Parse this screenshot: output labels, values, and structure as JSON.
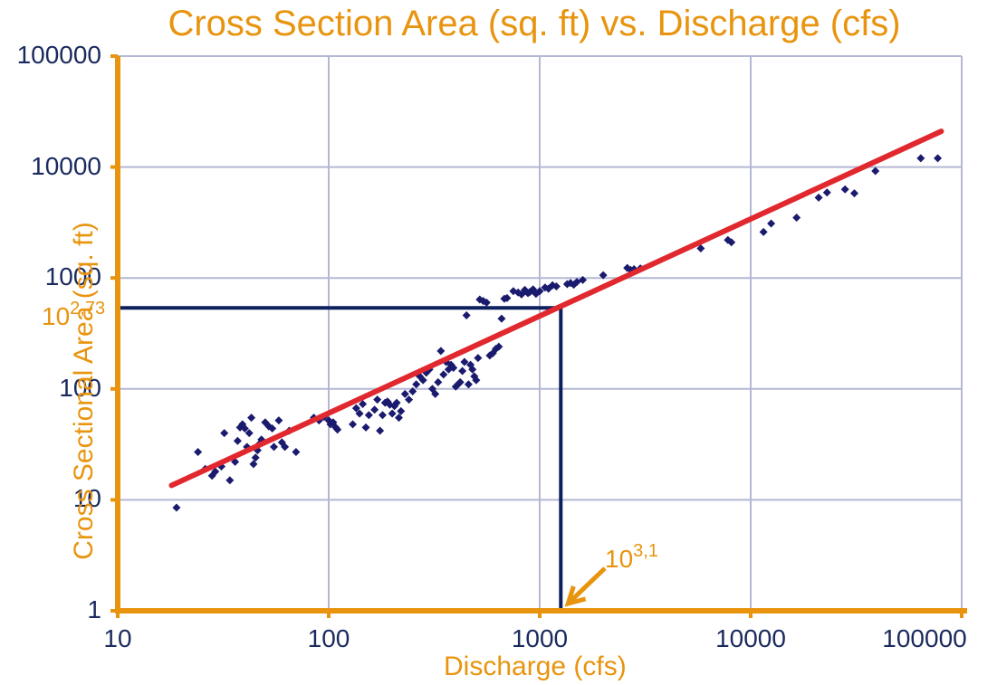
{
  "chart_data": {
    "type": "scatter",
    "title": "Cross Section Area (sq. ft) vs. Discharge (cfs)",
    "xlabel": "Discharge (cfs)",
    "ylabel": "Cross Sectional Area (sq. ft)",
    "xscale": "log",
    "yscale": "log",
    "xlim": [
      10,
      100000
    ],
    "ylim": [
      1,
      100000
    ],
    "x_ticks": [
      "10",
      "100",
      "1000",
      "10000",
      "100000"
    ],
    "y_ticks": [
      "1",
      "10",
      "100",
      "1000",
      "10000",
      "100000"
    ],
    "grid": true,
    "legend": "none",
    "colors": {
      "points": "#1a1a6e",
      "fit": "#e0282e",
      "guide": "#0d1f5c",
      "axes": "#e8940e",
      "grid": "#b4b8d4"
    },
    "series": [
      {
        "type": "scatter",
        "points": [
          [
            19,
            8.5
          ],
          [
            24,
            27
          ],
          [
            26,
            19
          ],
          [
            28,
            16.5
          ],
          [
            29,
            18
          ],
          [
            31,
            20
          ],
          [
            32,
            40
          ],
          [
            34,
            15
          ],
          [
            36,
            22
          ],
          [
            37,
            34
          ],
          [
            38,
            45
          ],
          [
            39,
            48
          ],
          [
            40,
            44
          ],
          [
            41,
            30
          ],
          [
            42,
            40
          ],
          [
            43,
            55
          ],
          [
            44,
            21
          ],
          [
            45,
            24
          ],
          [
            46,
            28
          ],
          [
            47,
            32
          ],
          [
            48,
            35
          ],
          [
            50,
            50
          ],
          [
            52,
            46
          ],
          [
            54,
            44
          ],
          [
            55,
            30
          ],
          [
            58,
            52
          ],
          [
            60,
            33
          ],
          [
            62,
            30
          ],
          [
            65,
            42
          ],
          [
            70,
            27
          ],
          [
            85,
            55
          ],
          [
            90,
            52
          ],
          [
            95,
            56
          ],
          [
            100,
            52
          ],
          [
            102,
            48
          ],
          [
            105,
            50
          ],
          [
            108,
            45
          ],
          [
            110,
            43
          ],
          [
            130,
            48
          ],
          [
            135,
            67
          ],
          [
            140,
            60
          ],
          [
            145,
            73
          ],
          [
            150,
            45
          ],
          [
            155,
            58
          ],
          [
            165,
            65
          ],
          [
            170,
            80
          ],
          [
            175,
            42
          ],
          [
            180,
            58
          ],
          [
            185,
            75
          ],
          [
            190,
            77
          ],
          [
            195,
            72
          ],
          [
            200,
            60
          ],
          [
            205,
            70
          ],
          [
            210,
            75
          ],
          [
            215,
            55
          ],
          [
            220,
            63
          ],
          [
            230,
            90
          ],
          [
            240,
            80
          ],
          [
            250,
            95
          ],
          [
            260,
            110
          ],
          [
            270,
            130
          ],
          [
            280,
            120
          ],
          [
            290,
            140
          ],
          [
            300,
            150
          ],
          [
            310,
            100
          ],
          [
            320,
            90
          ],
          [
            330,
            115
          ],
          [
            340,
            220
          ],
          [
            350,
            135
          ],
          [
            360,
            175
          ],
          [
            370,
            150
          ],
          [
            380,
            165
          ],
          [
            390,
            155
          ],
          [
            400,
            105
          ],
          [
            410,
            110
          ],
          [
            420,
            115
          ],
          [
            430,
            145
          ],
          [
            440,
            175
          ],
          [
            450,
            460
          ],
          [
            460,
            110
          ],
          [
            470,
            165
          ],
          [
            480,
            150
          ],
          [
            490,
            130
          ],
          [
            500,
            120
          ],
          [
            510,
            190
          ],
          [
            520,
            640
          ],
          [
            540,
            620
          ],
          [
            560,
            600
          ],
          [
            580,
            200
          ],
          [
            600,
            210
          ],
          [
            620,
            230
          ],
          [
            640,
            240
          ],
          [
            660,
            430
          ],
          [
            680,
            650
          ],
          [
            700,
            660
          ],
          [
            750,
            760
          ],
          [
            790,
            740
          ],
          [
            820,
            710
          ],
          [
            850,
            780
          ],
          [
            880,
            730
          ],
          [
            900,
            750
          ],
          [
            930,
            790
          ],
          [
            960,
            720
          ],
          [
            1000,
            760
          ],
          [
            1060,
            820
          ],
          [
            1100,
            800
          ],
          [
            1150,
            860
          ],
          [
            1200,
            840
          ],
          [
            1350,
            880
          ],
          [
            1400,
            900
          ],
          [
            1450,
            870
          ],
          [
            1500,
            920
          ],
          [
            1600,
            960
          ],
          [
            2000,
            1060
          ],
          [
            2600,
            1230
          ],
          [
            2700,
            1180
          ],
          [
            2800,
            1200
          ],
          [
            3000,
            1220
          ],
          [
            5800,
            1850
          ],
          [
            7800,
            2200
          ],
          [
            8100,
            2100
          ],
          [
            11500,
            2600
          ],
          [
            12500,
            3100
          ],
          [
            16500,
            3500
          ],
          [
            21000,
            5300
          ],
          [
            23000,
            5900
          ],
          [
            28000,
            6300
          ],
          [
            31000,
            5800
          ],
          [
            39000,
            9200
          ],
          [
            64000,
            12000
          ],
          [
            77000,
            12000
          ]
        ]
      },
      {
        "type": "line",
        "points": [
          [
            18,
            13.5
          ],
          [
            80000,
            21000
          ]
        ]
      }
    ],
    "annotations": [
      {
        "text_base": "10",
        "text_exp": "2,73",
        "axis": "y",
        "value": 537
      },
      {
        "text_base": "10",
        "text_exp": "3,1",
        "axis": "x",
        "value": 1259
      }
    ]
  }
}
